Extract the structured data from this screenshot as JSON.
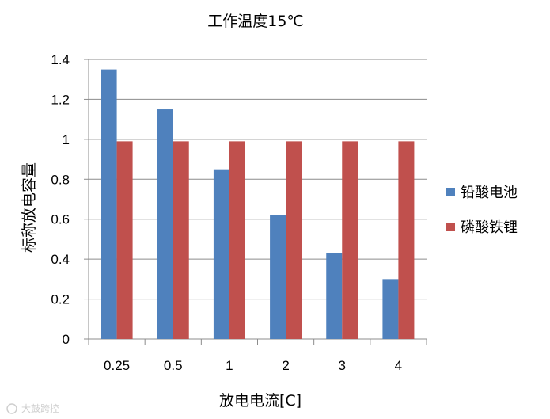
{
  "chart_data": {
    "type": "bar",
    "title": "工作温度15℃",
    "xlabel": "放电电流[C]",
    "ylabel": "标称放电容量",
    "categories": [
      "0.25",
      "0.5",
      "1",
      "2",
      "3",
      "4"
    ],
    "ylim": [
      0,
      1.4
    ],
    "yticks": [
      "0",
      "0.2",
      "0.4",
      "0.6",
      "0.8",
      "1",
      "1.2",
      "1.4"
    ],
    "grid": true,
    "legend_position": "right",
    "series": [
      {
        "name": "铅酸电池",
        "color": "#4f81bd",
        "values": [
          1.35,
          1.15,
          0.85,
          0.62,
          0.43,
          0.3
        ]
      },
      {
        "name": "磷酸铁锂",
        "color": "#c0504d",
        "values": [
          0.99,
          0.99,
          0.99,
          0.99,
          0.99,
          0.99
        ]
      }
    ]
  },
  "watermark": "大鼓跨控"
}
